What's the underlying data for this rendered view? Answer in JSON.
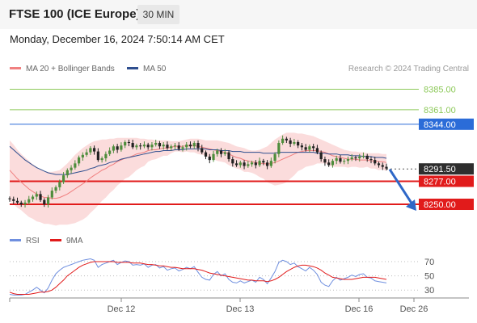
{
  "header": {
    "title": "FTSE 100 (ICE Europe)",
    "timeframe": "30 MIN"
  },
  "datetime": "Monday, December 16, 2024 7:50:14 AM CET",
  "legend": {
    "bb_label": "MA 20 + Bollinger Bands",
    "ma50_label": "MA 50",
    "credit": "Research © 2024 Trading Central"
  },
  "rsi_legend": {
    "rsi_label": "RSI",
    "ma_label": "9MA"
  },
  "colors": {
    "bollinger_band": "#f9d0d0",
    "ma20": "#f07f7f",
    "ma50": "#2f4f8f",
    "candle_up": "#4e8d3c",
    "resistance": "#8dc95a",
    "pivot": "#2b6cd8",
    "support": "#e11b1b",
    "rsi": "#6f8fdf",
    "rsi_ma": "#e11b1b"
  },
  "chart_data": [
    {
      "type": "candlestick",
      "title": "FTSE 100 (ICE Europe)",
      "timeframe": "30 MIN",
      "ylim": [
        8232,
        8395
      ],
      "x_tick_labels": [
        "Dec 12",
        "Dec 13",
        "Dec 16",
        "Dec 26"
      ],
      "last_price": 8291.5,
      "levels": [
        {
          "value": 8385.0,
          "label": "8385.00",
          "kind": "resistance"
        },
        {
          "value": 8361.0,
          "label": "8361.00",
          "kind": "resistance"
        },
        {
          "value": 8344.0,
          "label": "8344.00",
          "kind": "pivot"
        },
        {
          "value": 8291.5,
          "label": "8291.50",
          "kind": "last"
        },
        {
          "value": 8277.0,
          "label": "8277.00",
          "kind": "support"
        },
        {
          "value": 8250.0,
          "label": "8250.00",
          "kind": "support"
        }
      ],
      "forecast": {
        "from": 8291,
        "to": 8250
      },
      "close": [
        8256,
        8254,
        8252,
        8250,
        8252,
        8256,
        8259,
        8262,
        8255,
        8250,
        8258,
        8266,
        8270,
        8276,
        8284,
        8290,
        8293,
        8298,
        8305,
        8308,
        8311,
        8316,
        8312,
        8302,
        8304,
        8309,
        8313,
        8318,
        8314,
        8319,
        8323,
        8322,
        8317,
        8319,
        8318,
        8320,
        8317,
        8320,
        8322,
        8318,
        8320,
        8316,
        8318,
        8319,
        8315,
        8317,
        8320,
        8318,
        8322,
        8316,
        8311,
        8306,
        8302,
        8309,
        8313,
        8309,
        8311,
        8303,
        8298,
        8296,
        8299,
        8295,
        8297,
        8299,
        8296,
        8301,
        8299,
        8295,
        8301,
        8309,
        8322,
        8327,
        8325,
        8321,
        8323,
        8319,
        8317,
        8314,
        8318,
        8316,
        8311,
        8303,
        8299,
        8296,
        8301,
        8304,
        8300,
        8301,
        8303,
        8305,
        8304,
        8306,
        8307,
        8303,
        8302,
        8298,
        8296,
        8294,
        8292
      ],
      "series": [
        {
          "name": "MA 20",
          "values": [
            8290,
            8285,
            8280,
            8276,
            8272,
            8268,
            8265,
            8262,
            8260,
            8258,
            8258,
            8257,
            8257,
            8258,
            8260,
            8262,
            8265,
            8268,
            8271,
            8274,
            8277,
            8281,
            8284,
            8287,
            8290,
            8292,
            8295,
            8297,
            8300,
            8302,
            8304,
            8305,
            8307,
            8309,
            8310,
            8311,
            8313,
            8314,
            8314,
            8315,
            8316,
            8316,
            8317,
            8318,
            8318,
            8318,
            8319,
            8319,
            8319,
            8318,
            8317,
            8316,
            8315,
            8314,
            8313,
            8312,
            8311,
            8309,
            8307,
            8305,
            8304,
            8302,
            8301,
            8300,
            8299,
            8298,
            8298,
            8297,
            8298,
            8299,
            8301,
            8303,
            8305,
            8307,
            8309,
            8311,
            8312,
            8313,
            8313,
            8313,
            8313,
            8312,
            8311,
            8309,
            8307,
            8306,
            8305,
            8304,
            8303,
            8303,
            8303,
            8302,
            8302,
            8302,
            8301,
            8301,
            8300,
            8300,
            8299
          ]
        },
        {
          "name": "MA 50",
          "values": [
            8318,
            8314,
            8310,
            8306,
            8302,
            8299,
            8296,
            8293,
            8291,
            8289,
            8287,
            8286,
            8285,
            8285,
            8285,
            8285,
            8286,
            8287,
            8288,
            8289,
            8290,
            8292,
            8293,
            8295,
            8296,
            8297,
            8299,
            8300,
            8301,
            8303,
            8304,
            8305,
            8306,
            8307,
            8308,
            8309,
            8310,
            8311,
            8312,
            8312,
            8313,
            8313,
            8313,
            8314,
            8314,
            8314,
            8315,
            8315,
            8315,
            8315,
            8315,
            8315,
            8314,
            8314,
            8314,
            8313,
            8313,
            8313,
            8312,
            8312,
            8312,
            8311,
            8311,
            8311,
            8311,
            8311,
            8310,
            8310,
            8310,
            8310,
            8311,
            8311,
            8311,
            8311,
            8311,
            8311,
            8311,
            8311,
            8311,
            8311,
            8310,
            8310,
            8310,
            8309,
            8309,
            8309,
            8308,
            8308,
            8308,
            8307,
            8307,
            8307,
            8306,
            8306,
            8306,
            8305,
            8305,
            8305,
            8304
          ]
        },
        {
          "name": "Bollinger Upper",
          "values": [
            8325,
            8320,
            8314,
            8309,
            8305,
            8301,
            8297,
            8294,
            8291,
            8289,
            8288,
            8288,
            8289,
            8290,
            8294,
            8298,
            8303,
            8308,
            8312,
            8316,
            8319,
            8322,
            8324,
            8325,
            8326,
            8326,
            8327,
            8327,
            8328,
            8328,
            8328,
            8328,
            8328,
            8328,
            8327,
            8327,
            8326,
            8326,
            8325,
            8325,
            8325,
            8325,
            8324,
            8324,
            8324,
            8325,
            8326,
            8327,
            8327,
            8327,
            8326,
            8325,
            8325,
            8325,
            8325,
            8324,
            8323,
            8322,
            8320,
            8318,
            8317,
            8316,
            8314,
            8313,
            8313,
            8314,
            8316,
            8318,
            8322,
            8326,
            8329,
            8332,
            8334,
            8334,
            8334,
            8333,
            8333,
            8332,
            8331,
            8330,
            8328,
            8326,
            8324,
            8322,
            8320,
            8318,
            8316,
            8314,
            8313,
            8312,
            8312,
            8311,
            8311,
            8310,
            8310,
            8310,
            8310,
            8309,
            8309
          ]
        },
        {
          "name": "Bollinger Lower",
          "values": [
            8255,
            8250,
            8246,
            8243,
            8239,
            8235,
            8233,
            8230,
            8229,
            8227,
            8227,
            8226,
            8225,
            8226,
            8226,
            8226,
            8227,
            8228,
            8230,
            8232,
            8235,
            8240,
            8244,
            8249,
            8254,
            8258,
            8263,
            8267,
            8272,
            8276,
            8280,
            8282,
            8286,
            8290,
            8293,
            8295,
            8300,
            8302,
            8303,
            8305,
            8307,
            8307,
            8310,
            8312,
            8312,
            8311,
            8312,
            8311,
            8311,
            8309,
            8308,
            8307,
            8305,
            8303,
            8301,
            8300,
            8299,
            8296,
            8294,
            8292,
            8291,
            8288,
            8288,
            8287,
            8285,
            8282,
            8280,
            8276,
            8274,
            8272,
            8273,
            8274,
            8276,
            8280,
            8284,
            8289,
            8291,
            8294,
            8295,
            8296,
            8298,
            8298,
            8298,
            8296,
            8294,
            8294,
            8294,
            8294,
            8293,
            8294,
            8294,
            8293,
            8293,
            8294,
            8292,
            8292,
            8290,
            8291,
            8289
          ]
        }
      ]
    },
    {
      "type": "line",
      "title": "RSI",
      "ylim": [
        20,
        78
      ],
      "y_ticks": [
        70,
        50,
        30
      ],
      "series": [
        {
          "name": "RSI",
          "values": [
            24,
            23,
            23,
            23,
            24,
            27,
            30,
            34,
            30,
            26,
            33,
            44,
            53,
            58,
            62,
            64,
            66,
            68,
            70,
            72,
            73,
            74,
            72,
            62,
            66,
            68,
            70,
            72,
            66,
            69,
            71,
            70,
            65,
            66,
            65,
            67,
            62,
            65,
            66,
            61,
            63,
            58,
            60,
            61,
            57,
            59,
            62,
            60,
            63,
            55,
            48,
            45,
            44,
            52,
            56,
            50,
            53,
            45,
            41,
            40,
            43,
            40,
            42,
            44,
            41,
            48,
            45,
            39,
            47,
            56,
            69,
            72,
            70,
            66,
            68,
            63,
            60,
            57,
            62,
            58,
            52,
            41,
            37,
            35,
            43,
            48,
            44,
            46,
            48,
            51,
            49,
            52,
            53,
            48,
            47,
            43,
            42,
            41,
            40
          ]
        },
        {
          "name": "9MA",
          "values": [
            27,
            25,
            24,
            24,
            24,
            24,
            25,
            26,
            27,
            27,
            28,
            30,
            34,
            39,
            44,
            50,
            54,
            58,
            62,
            65,
            67,
            69,
            70,
            70,
            70,
            70,
            70,
            70,
            69,
            69,
            69,
            69,
            68,
            68,
            68,
            67,
            66,
            66,
            65,
            64,
            64,
            63,
            62,
            62,
            61,
            60,
            60,
            60,
            60,
            59,
            58,
            56,
            54,
            53,
            52,
            51,
            50,
            49,
            48,
            47,
            46,
            45,
            44,
            44,
            43,
            43,
            43,
            42,
            43,
            45,
            48,
            52,
            56,
            59,
            62,
            64,
            65,
            65,
            64,
            63,
            61,
            58,
            54,
            51,
            48,
            47,
            46,
            45,
            45,
            45,
            46,
            47,
            48,
            48,
            48,
            48,
            47,
            46,
            45
          ]
        }
      ]
    }
  ]
}
